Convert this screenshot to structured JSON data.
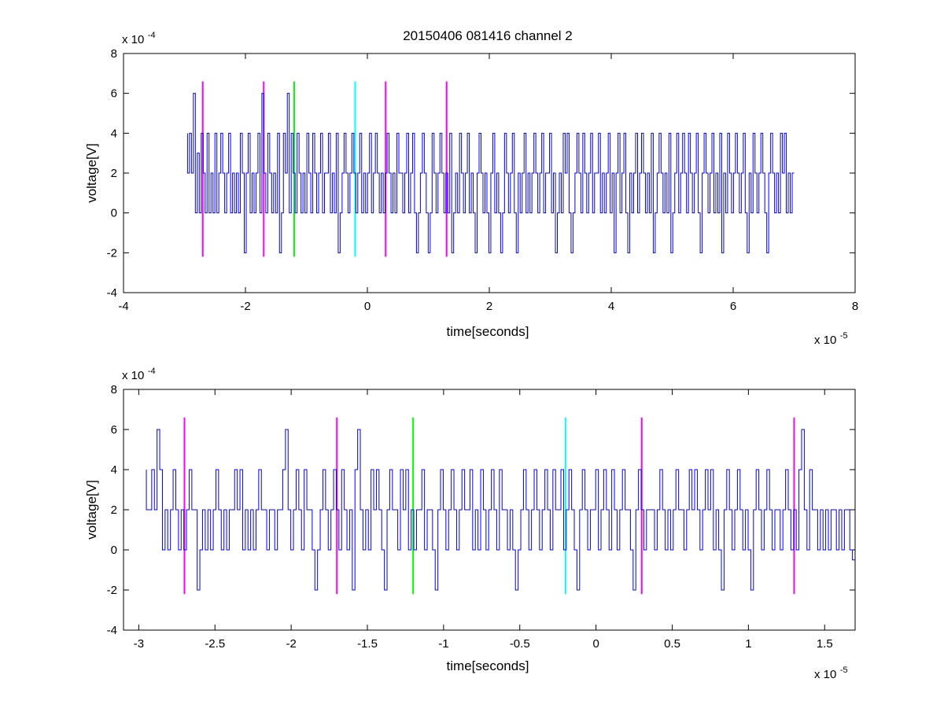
{
  "figure_title": "20150406 081416 channel 2",
  "colors": {
    "signal": "#0000ff",
    "marker_magenta": "#ff00ff",
    "marker_green": "#00ff00",
    "marker_cyan": "#00ffff",
    "axes": "#000000",
    "background": "#ffffff"
  },
  "chart_data": [
    {
      "type": "line",
      "title": "20150406 081416 channel 2",
      "xlabel": "time[seconds]",
      "ylabel": "voltage[V]",
      "x_scale_label": "x 10",
      "x_scale_exp": "-5",
      "y_scale_label": "x 10",
      "y_scale_exp": "-4",
      "xlim": [
        -4,
        8
      ],
      "ylim": [
        -4,
        8
      ],
      "x_ticks": [
        -4,
        -2,
        0,
        2,
        4,
        6,
        8
      ],
      "x_tick_labels": [
        "-4",
        "-2",
        "0",
        "2",
        "4",
        "6",
        "8"
      ],
      "y_ticks": [
        -4,
        -2,
        0,
        2,
        4,
        6,
        8
      ],
      "y_tick_labels": [
        "-4",
        "-2",
        "0",
        "2",
        "4",
        "6",
        "8"
      ],
      "grid": false,
      "series": [
        {
          "style": "step",
          "color": "#0000ff",
          "x_start": -2.95,
          "x_end": 7.0,
          "values": [
            4,
            2,
            4,
            2,
            6,
            0,
            3,
            0,
            4,
            2,
            0,
            4,
            0,
            2,
            0,
            4,
            0,
            2,
            4,
            2,
            0,
            2,
            4,
            0,
            2,
            0,
            2,
            0,
            4,
            2,
            -2,
            2,
            4,
            0,
            2,
            0,
            2,
            4,
            0,
            6,
            2,
            0,
            4,
            2,
            0,
            2,
            0,
            4,
            -2,
            0,
            4,
            2,
            6,
            0,
            4,
            2,
            0,
            4,
            2,
            0,
            2,
            0,
            4,
            2,
            0,
            4,
            2,
            0,
            2,
            4,
            0,
            2,
            2,
            4,
            0,
            2,
            0,
            4,
            -2,
            0,
            2,
            4,
            2,
            0,
            2,
            4,
            2,
            0,
            2,
            4,
            0,
            2,
            0,
            2,
            4,
            0,
            2,
            4,
            2,
            0,
            2,
            0,
            2,
            4,
            2,
            0,
            2,
            0,
            4,
            2,
            2,
            0,
            2,
            4,
            0,
            2,
            4,
            0,
            -2,
            0,
            2,
            4,
            2,
            0,
            -2,
            0,
            4,
            2,
            0,
            2,
            4,
            2,
            0,
            2,
            0,
            4,
            -2,
            0,
            2,
            0,
            4,
            2,
            0,
            2,
            4,
            0,
            2,
            0,
            -2,
            2,
            4,
            2,
            0,
            2,
            0,
            -2,
            2,
            4,
            0,
            2,
            0,
            -2,
            0,
            4,
            2,
            0,
            2,
            4,
            0,
            -2,
            2,
            0,
            2,
            4,
            0,
            2,
            0,
            2,
            4,
            2,
            0,
            2,
            4,
            0,
            2,
            2,
            4,
            0,
            2,
            -2,
            0,
            2,
            0,
            4,
            2,
            4,
            0,
            -2,
            0,
            2,
            4,
            2,
            0,
            4,
            2,
            0,
            2,
            4,
            0,
            2,
            2,
            4,
            0,
            2,
            0,
            2,
            4,
            0,
            2,
            -2,
            2,
            4,
            0,
            2,
            4,
            0,
            -2,
            2,
            0,
            2,
            4,
            0,
            2,
            4,
            2,
            0,
            2,
            0,
            4,
            -2,
            0,
            2,
            4,
            2,
            0,
            2,
            0,
            4,
            -2,
            0,
            2,
            4,
            0,
            2,
            4,
            2,
            0,
            4,
            2,
            0,
            2,
            4,
            0,
            -2,
            2,
            4,
            2,
            0,
            2,
            4,
            0,
            2,
            0,
            4,
            -2,
            2,
            0,
            4,
            2,
            0,
            2,
            4,
            2,
            0,
            2,
            4,
            0,
            -2,
            2,
            0,
            4,
            2,
            0,
            2,
            4,
            2,
            0,
            -2,
            2,
            4,
            2,
            0,
            2,
            0,
            4,
            2,
            4,
            0,
            2,
            0,
            2
          ]
        }
      ],
      "markers": [
        {
          "x": -2.7,
          "color": "#ff00ff",
          "y_range": [
            -2.2,
            6.6
          ]
        },
        {
          "x": -1.7,
          "color": "#ff00ff",
          "y_range": [
            -2.2,
            6.6
          ]
        },
        {
          "x": -1.2,
          "color": "#00ff00",
          "y_range": [
            -2.2,
            6.6
          ]
        },
        {
          "x": -0.2,
          "color": "#00ffff",
          "y_range": [
            -2.2,
            6.6
          ]
        },
        {
          "x": 0.3,
          "color": "#ff00ff",
          "y_range": [
            -2.2,
            6.6
          ]
        },
        {
          "x": 1.3,
          "color": "#ff00ff",
          "y_range": [
            -2.2,
            6.6
          ]
        }
      ]
    },
    {
      "type": "line",
      "title": "",
      "xlabel": "time[seconds]",
      "ylabel": "voltage[V]",
      "x_scale_label": "x 10",
      "x_scale_exp": "-5",
      "y_scale_label": "x 10",
      "y_scale_exp": "-4",
      "xlim": [
        -3.1,
        1.7
      ],
      "ylim": [
        -4,
        8
      ],
      "x_ticks": [
        -3,
        -2.5,
        -2,
        -1.5,
        -1,
        -0.5,
        0,
        0.5,
        1,
        1.5
      ],
      "x_tick_labels": [
        "-3",
        "-2.5",
        "-2",
        "-1.5",
        "-1",
        "-0.5",
        "0",
        "0.5",
        "1",
        "1.5"
      ],
      "y_ticks": [
        -4,
        -2,
        0,
        2,
        4,
        6,
        8
      ],
      "y_tick_labels": [
        "-4",
        "-2",
        "0",
        "2",
        "4",
        "6",
        "8"
      ],
      "grid": false,
      "series": [
        {
          "style": "step",
          "color": "#0000ff",
          "x_start": -2.95,
          "x_end": 1.7,
          "values": [
            4,
            2,
            2,
            4,
            2,
            6,
            4,
            0,
            2,
            0,
            2,
            4,
            2,
            0,
            2,
            0,
            2,
            4,
            2,
            2,
            -2,
            0,
            2,
            0,
            2,
            0,
            2,
            4,
            2,
            0,
            2,
            0,
            2,
            2,
            4,
            2,
            4,
            0,
            2,
            0,
            2,
            0,
            2,
            4,
            2,
            2,
            0,
            2,
            2,
            0,
            2,
            2,
            4,
            6,
            2,
            0,
            2,
            4,
            2,
            0,
            4,
            2,
            2,
            0,
            -2,
            0,
            2,
            4,
            2,
            0,
            2,
            4,
            2,
            0,
            4,
            2,
            0,
            2,
            -2,
            4,
            6,
            2,
            0,
            2,
            0,
            4,
            2,
            4,
            2,
            0,
            -2,
            2,
            4,
            2,
            2,
            0,
            4,
            2,
            4,
            0,
            2,
            0,
            2,
            2,
            4,
            0,
            2,
            2,
            0,
            -2,
            2,
            4,
            2,
            0,
            2,
            4,
            2,
            0,
            2,
            4,
            2,
            2,
            4,
            0,
            2,
            0,
            4,
            2,
            0,
            2,
            4,
            2,
            0,
            4,
            2,
            2,
            0,
            2,
            0,
            -2,
            0,
            2,
            4,
            2,
            0,
            2,
            4,
            2,
            0,
            2,
            4,
            2,
            0,
            4,
            2,
            2,
            4,
            0,
            2,
            4,
            2,
            0,
            -2,
            2,
            4,
            2,
            0,
            2,
            2,
            4,
            0,
            2,
            4,
            2,
            0,
            4,
            2,
            0,
            2,
            4,
            2,
            2,
            0,
            -2,
            2,
            4,
            2,
            0,
            2,
            2,
            2,
            0,
            2,
            4,
            2,
            0,
            2,
            0,
            2,
            4,
            2,
            2,
            0,
            2,
            4,
            2,
            4,
            2,
            0,
            2,
            4,
            2,
            4,
            0,
            2,
            0,
            -2,
            2,
            4,
            2,
            0,
            2,
            4,
            2,
            0,
            2,
            0,
            -2,
            2,
            4,
            2,
            0,
            2,
            4,
            2,
            0,
            2,
            2,
            0,
            2,
            4,
            2,
            0,
            2,
            0,
            4,
            6,
            2,
            0,
            4,
            2,
            2,
            0,
            2,
            0,
            2,
            0,
            2,
            2,
            0,
            2,
            0,
            2,
            2,
            0,
            -0.5
          ]
        }
      ],
      "markers": [
        {
          "x": -2.7,
          "color": "#ff00ff",
          "y_range": [
            -2.2,
            6.6
          ]
        },
        {
          "x": -1.7,
          "color": "#ff00ff",
          "y_range": [
            -2.2,
            6.6
          ]
        },
        {
          "x": -1.2,
          "color": "#00ff00",
          "y_range": [
            -2.2,
            6.6
          ]
        },
        {
          "x": -0.2,
          "color": "#00ffff",
          "y_range": [
            -2.2,
            6.6
          ]
        },
        {
          "x": 0.3,
          "color": "#ff00ff",
          "y_range": [
            -2.2,
            6.6
          ]
        },
        {
          "x": 1.3,
          "color": "#ff00ff",
          "y_range": [
            -2.2,
            6.6
          ]
        }
      ]
    }
  ]
}
